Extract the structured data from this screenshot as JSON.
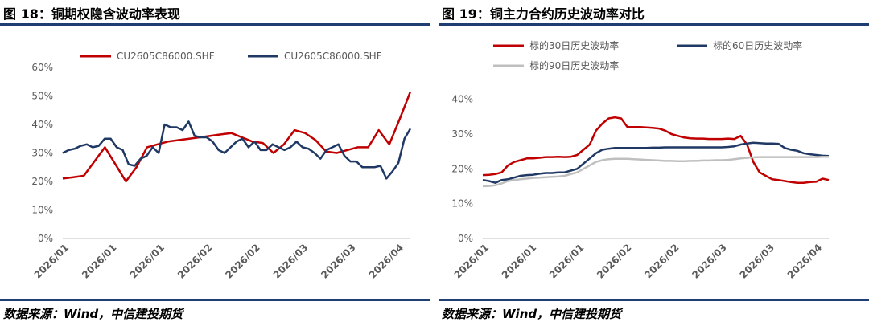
{
  "charts": [
    {
      "fig_title": "图 18：铜期权隐含波动率表现",
      "source": "数据来源：Wind，中信建投期货"
    },
    {
      "fig_title": "图 19：铜主力合约历史波动率对比",
      "source": "数据来源：Wind，中信建投期货"
    }
  ],
  "chart_data": [
    {
      "type": "line",
      "title": "图 18：铜期权隐含波动率表现",
      "xlabel": "",
      "ylabel": "",
      "ylim": [
        0,
        0.6
      ],
      "yticks": [
        "0%",
        "10%",
        "20%",
        "30%",
        "40%",
        "50%",
        "60%"
      ],
      "xtick_labels": [
        "2026/01",
        "2026/01",
        "2026/01",
        "2026/02",
        "2026/02",
        "2026/03",
        "2026/03",
        "2026/04"
      ],
      "grid": false,
      "legend_position": "top",
      "series": [
        {
          "name": "CU2605C86000.SHF",
          "color": "#c00000",
          "values": [
            0.21,
            0.215,
            0.22,
            0.27,
            0.32,
            0.26,
            0.2,
            0.25,
            0.32,
            0.33,
            0.34,
            0.345,
            0.35,
            0.355,
            0.36,
            0.365,
            0.37,
            0.355,
            0.34,
            0.335,
            0.3,
            0.33,
            0.38,
            0.37,
            0.345,
            0.305,
            0.3,
            0.31,
            0.32,
            0.32,
            0.38,
            0.33,
            0.42,
            0.515
          ]
        },
        {
          "name": "CU2605C86000.SHF",
          "color": "#1f3864",
          "values": [
            0.3,
            0.31,
            0.315,
            0.325,
            0.33,
            0.32,
            0.325,
            0.35,
            0.35,
            0.32,
            0.31,
            0.26,
            0.255,
            0.28,
            0.29,
            0.32,
            0.3,
            0.4,
            0.39,
            0.39,
            0.38,
            0.41,
            0.36,
            0.355,
            0.355,
            0.34,
            0.31,
            0.3,
            0.32,
            0.34,
            0.35,
            0.32,
            0.34,
            0.31,
            0.31,
            0.33,
            0.32,
            0.31,
            0.32,
            0.34,
            0.32,
            0.315,
            0.3,
            0.28,
            0.31,
            0.32,
            0.33,
            0.29,
            0.27,
            0.27,
            0.25,
            0.25,
            0.25,
            0.255,
            0.21,
            0.235,
            0.265,
            0.35,
            0.385
          ]
        }
      ]
    },
    {
      "type": "line",
      "title": "图 19：铜主力合约历史波动率对比",
      "xlabel": "",
      "ylabel": "",
      "ylim": [
        0,
        0.45
      ],
      "yticks": [
        "0%",
        "10%",
        "20%",
        "30%",
        "40%"
      ],
      "xtick_labels": [
        "2026/01",
        "2026/01",
        "2026/01",
        "2026/02",
        "2026/02",
        "2026/03",
        "2026/03",
        "2026/04"
      ],
      "grid": false,
      "legend_position": "top",
      "series": [
        {
          "name": "标的30日历史波动率",
          "color": "#c00000",
          "values": [
            0.182,
            0.183,
            0.185,
            0.19,
            0.21,
            0.22,
            0.225,
            0.23,
            0.23,
            0.232,
            0.234,
            0.234,
            0.235,
            0.234,
            0.235,
            0.24,
            0.255,
            0.27,
            0.31,
            0.33,
            0.345,
            0.348,
            0.345,
            0.32,
            0.32,
            0.32,
            0.319,
            0.318,
            0.316,
            0.31,
            0.3,
            0.295,
            0.29,
            0.288,
            0.287,
            0.287,
            0.286,
            0.286,
            0.286,
            0.287,
            0.286,
            0.295,
            0.27,
            0.22,
            0.19,
            0.18,
            0.17,
            0.168,
            0.165,
            0.162,
            0.16,
            0.16,
            0.162,
            0.163,
            0.172,
            0.168
          ]
        },
        {
          "name": "标的60日历史波动率",
          "color": "#1f3864",
          "values": [
            0.168,
            0.165,
            0.16,
            0.168,
            0.17,
            0.175,
            0.18,
            0.182,
            0.183,
            0.186,
            0.188,
            0.188,
            0.19,
            0.19,
            0.195,
            0.2,
            0.215,
            0.23,
            0.245,
            0.255,
            0.258,
            0.26,
            0.26,
            0.26,
            0.26,
            0.26,
            0.26,
            0.261,
            0.261,
            0.262,
            0.262,
            0.262,
            0.262,
            0.262,
            0.262,
            0.262,
            0.262,
            0.262,
            0.262,
            0.263,
            0.265,
            0.27,
            0.273,
            0.275,
            0.274,
            0.273,
            0.273,
            0.272,
            0.26,
            0.255,
            0.252,
            0.245,
            0.242,
            0.24,
            0.238,
            0.237
          ]
        },
        {
          "name": "标的90日历史波动率",
          "color": "#bfbfbf",
          "values": [
            0.15,
            0.151,
            0.153,
            0.158,
            0.165,
            0.168,
            0.17,
            0.172,
            0.174,
            0.175,
            0.176,
            0.177,
            0.178,
            0.18,
            0.185,
            0.19,
            0.2,
            0.21,
            0.22,
            0.225,
            0.228,
            0.229,
            0.229,
            0.229,
            0.228,
            0.227,
            0.226,
            0.225,
            0.224,
            0.223,
            0.223,
            0.222,
            0.222,
            0.223,
            0.223,
            0.224,
            0.224,
            0.225,
            0.225,
            0.226,
            0.228,
            0.23,
            0.232,
            0.233,
            0.234,
            0.234,
            0.234,
            0.234,
            0.234,
            0.234,
            0.234,
            0.234,
            0.234,
            0.234,
            0.235,
            0.235
          ]
        }
      ]
    }
  ]
}
